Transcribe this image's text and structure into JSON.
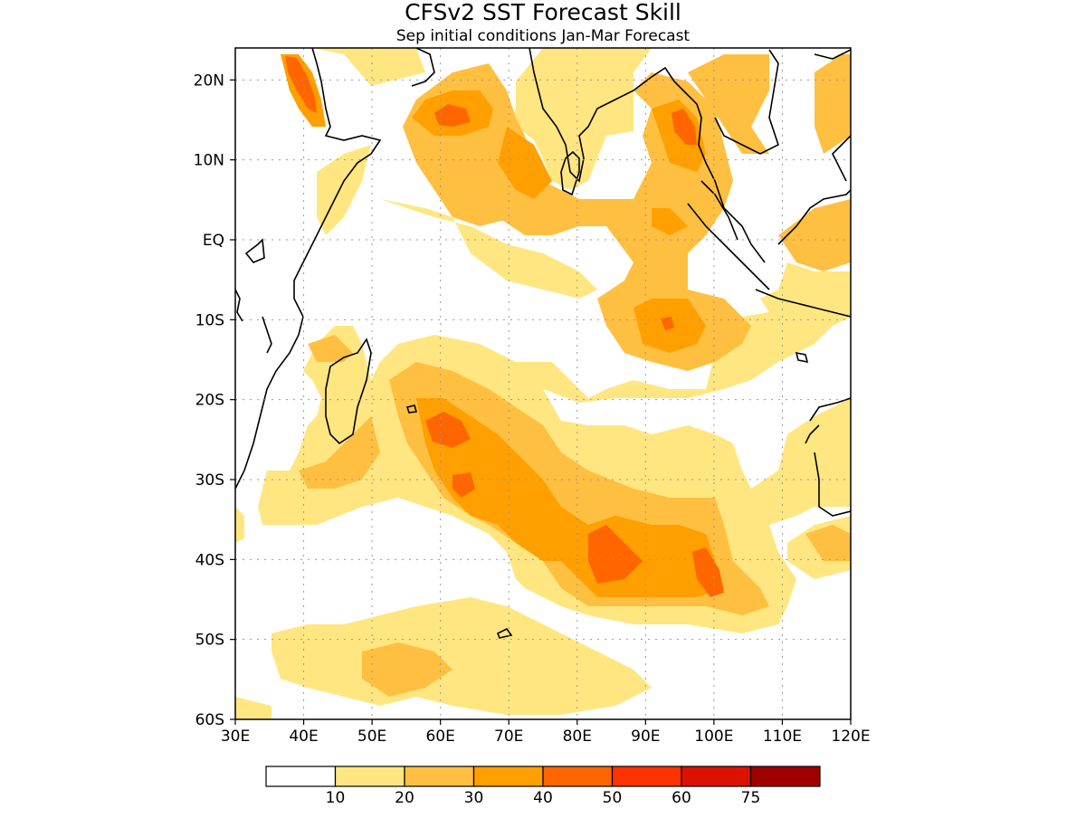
{
  "title": "CFSv2 SST Forecast Skill",
  "subtitle": "Sep initial conditions  Jan-Mar Forecast",
  "map": {
    "lon_range": [
      30,
      120
    ],
    "lat_range": [
      -60,
      24
    ],
    "lat_ticks": [
      {
        "value": 20,
        "label": "20N"
      },
      {
        "value": 10,
        "label": "10N"
      },
      {
        "value": 0,
        "label": "EQ"
      },
      {
        "value": -10,
        "label": "10S"
      },
      {
        "value": -20,
        "label": "20S"
      },
      {
        "value": -30,
        "label": "30S"
      },
      {
        "value": -40,
        "label": "40S"
      },
      {
        "value": -50,
        "label": "50S"
      },
      {
        "value": -60,
        "label": "60S"
      }
    ],
    "lon_ticks": [
      {
        "value": 30,
        "label": "30E"
      },
      {
        "value": 40,
        "label": "40E"
      },
      {
        "value": 50,
        "label": "50E"
      },
      {
        "value": 60,
        "label": "60E"
      },
      {
        "value": 70,
        "label": "70E"
      },
      {
        "value": 80,
        "label": "80E"
      },
      {
        "value": 90,
        "label": "90E"
      },
      {
        "value": 100,
        "label": "100E"
      },
      {
        "value": 110,
        "label": "110E"
      },
      {
        "value": 120,
        "label": "120E"
      }
    ],
    "grid": true
  },
  "colorbar": {
    "colors": [
      "#ffffff",
      "#ffe680",
      "#ffbf40",
      "#ff9f00",
      "#ff6600",
      "#ff3300",
      "#dd1100",
      "#a00000"
    ],
    "labels": [
      "10",
      "20",
      "30",
      "40",
      "50",
      "60",
      "75"
    ]
  }
}
